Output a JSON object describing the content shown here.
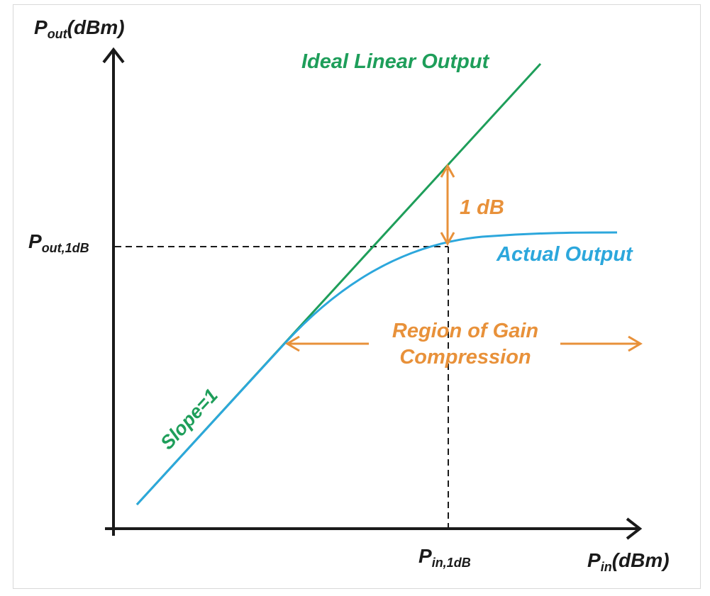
{
  "diagram": {
    "y_axis_label": {
      "main": "P",
      "sub": "out",
      "unit": "(dBm)"
    },
    "x_axis_label": {
      "main": "P",
      "sub": "in",
      "unit": "(dBm)"
    },
    "y_tick_label": {
      "main": "P",
      "sub": "out,1dB"
    },
    "x_tick_label": {
      "main": "P",
      "sub": "in,1dB"
    },
    "ideal_label": "Ideal Linear Output",
    "actual_label": "Actual Output",
    "slope_label": "Slope=1",
    "one_db_label": "1 dB",
    "region_label_line1": "Region of Gain",
    "region_label_line2": "Compression",
    "colors": {
      "axis": "#1a1a1a",
      "ideal": "#1e9e5a",
      "actual": "#2ca7dc",
      "annotation": "#e8913a",
      "dashed": "#1a1a1a"
    }
  }
}
